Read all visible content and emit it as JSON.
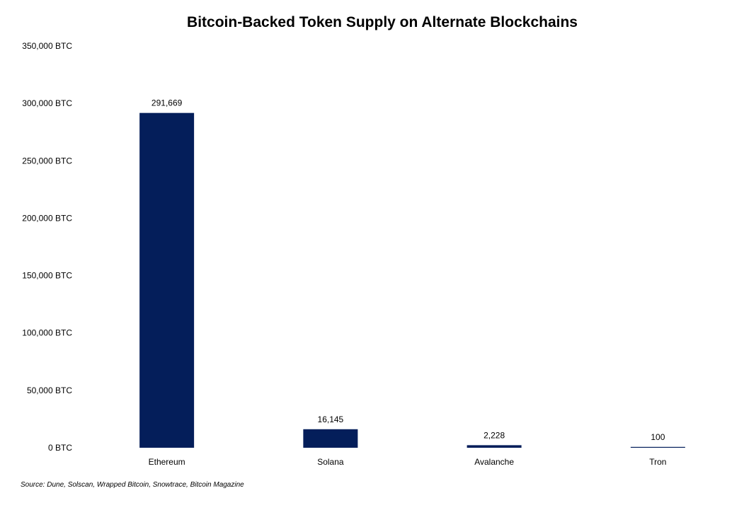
{
  "chart_data": {
    "type": "bar",
    "title": "Bitcoin-Backed Token Supply on Alternate Blockchains",
    "categories": [
      "Ethereum",
      "Solana",
      "Avalanche",
      "Tron"
    ],
    "values": [
      291669,
      16145,
      2228,
      100
    ],
    "data_labels": [
      "291,669",
      "16,145",
      "2,228",
      "100"
    ],
    "y_tick_labels": [
      "0 BTC",
      "50,000 BTC",
      "100,000 BTC",
      "150,000 BTC",
      "200,000 BTC",
      "250,000 BTC",
      "300,000 BTC",
      "350,000 BTC"
    ],
    "y_ticks": [
      0,
      50000,
      100000,
      150000,
      200000,
      250000,
      300000,
      350000
    ],
    "ylim": [
      0,
      350000
    ],
    "xlabel": "",
    "ylabel": "",
    "grid": false,
    "legend": "none",
    "bar_color": "#041E5A"
  },
  "source": "Source: Dune, Solscan, Wrapped Bitcoin, Snowtrace, Bitcoin Magazine"
}
